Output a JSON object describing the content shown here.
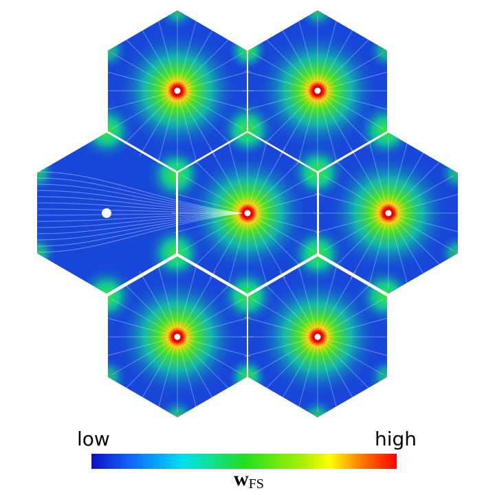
{
  "colorbar": {
    "low_label": "low",
    "high_label": "high",
    "title": "w",
    "title_subscript": "FS"
  }
}
